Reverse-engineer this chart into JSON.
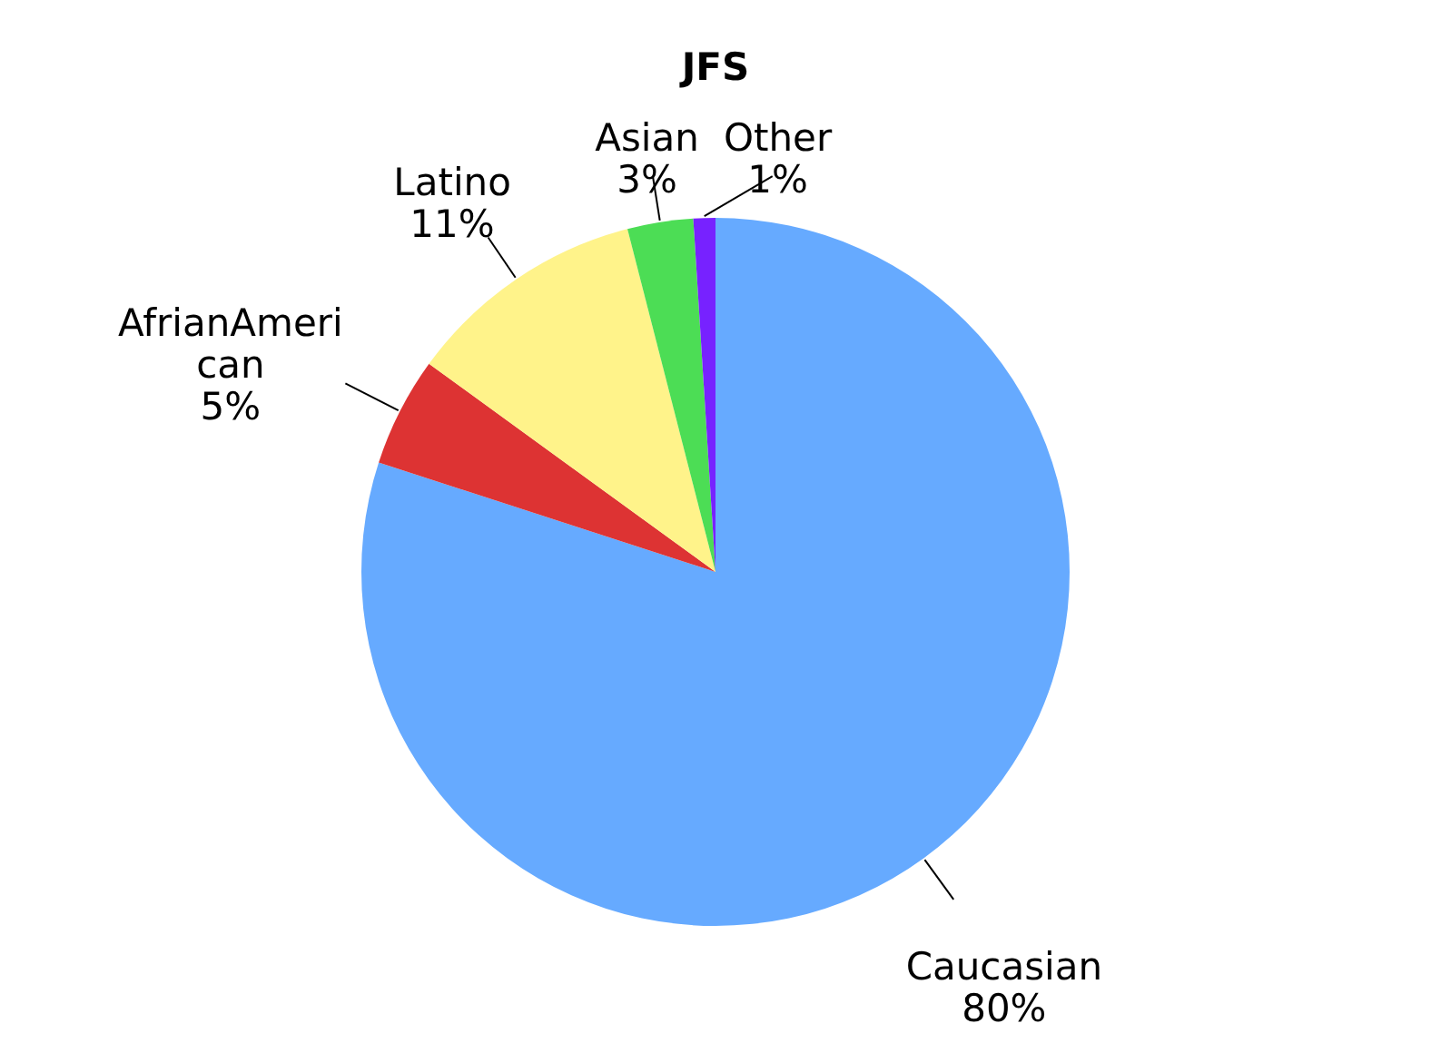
{
  "chart_data": {
    "type": "pie",
    "title": "JFS",
    "categories": [
      "Caucasian",
      "AfrianAmerican",
      "Latino",
      "Asian",
      "Other"
    ],
    "values": [
      80,
      5,
      11,
      3,
      1
    ],
    "colors": [
      "#66aaff",
      "#dd3333",
      "#fff38a",
      "#4cdd55",
      "#7722ff"
    ],
    "value_labels": [
      "80%",
      "5%",
      "11%",
      "3%",
      "1%"
    ],
    "legend": false
  }
}
